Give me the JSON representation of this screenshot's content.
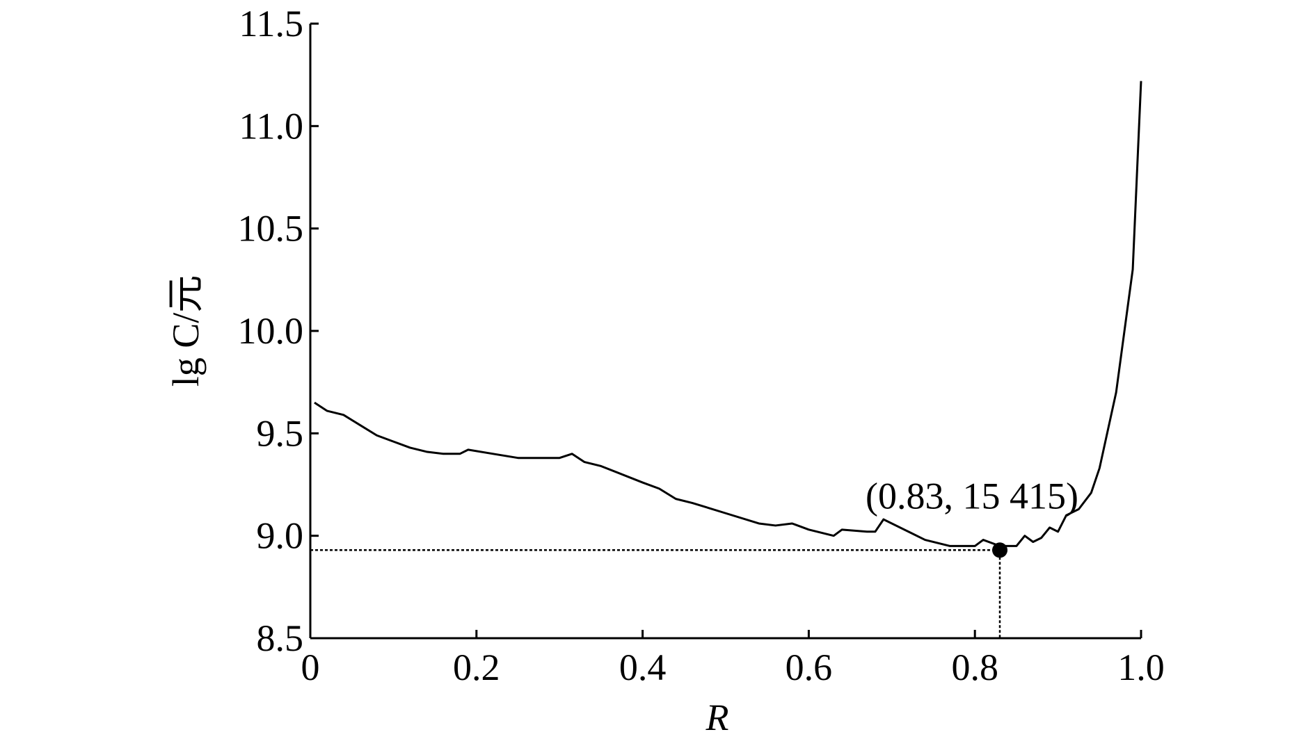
{
  "chart_data": {
    "type": "line",
    "xlabel": "R",
    "ylabel": "lg C/元",
    "x": [
      0.005,
      0.02,
      0.04,
      0.06,
      0.08,
      0.1,
      0.12,
      0.14,
      0.16,
      0.18,
      0.19,
      0.22,
      0.25,
      0.3,
      0.315,
      0.33,
      0.35,
      0.4,
      0.42,
      0.44,
      0.46,
      0.5,
      0.54,
      0.56,
      0.58,
      0.6,
      0.63,
      0.64,
      0.67,
      0.68,
      0.69,
      0.72,
      0.74,
      0.77,
      0.8,
      0.81,
      0.83,
      0.85,
      0.86,
      0.87,
      0.88,
      0.89,
      0.9,
      0.91,
      0.925,
      0.94,
      0.95,
      0.97,
      0.99,
      1.0
    ],
    "series": [
      {
        "color": "#000000",
        "values": [
          9.65,
          9.61,
          9.59,
          9.54,
          9.49,
          9.46,
          9.43,
          9.41,
          9.4,
          9.4,
          9.42,
          9.4,
          9.38,
          9.38,
          9.4,
          9.36,
          9.34,
          9.26,
          9.23,
          9.18,
          9.16,
          9.11,
          9.06,
          9.05,
          9.06,
          9.03,
          9.0,
          9.03,
          9.02,
          9.02,
          9.08,
          9.02,
          8.98,
          8.95,
          8.95,
          8.98,
          8.95,
          8.95,
          9.0,
          8.97,
          8.99,
          9.04,
          9.02,
          9.1,
          9.13,
          9.21,
          9.33,
          9.7,
          10.3,
          11.22
        ]
      }
    ],
    "highlight": {
      "x": 0.83,
      "y": 8.93,
      "label": "(0.83, 15 415)"
    },
    "xlim": [
      0,
      1
    ],
    "xticks": [
      0,
      0.2,
      0.4,
      0.6,
      0.8,
      {
        "value": 1,
        "label": "1.0"
      }
    ],
    "ylim": [
      8.5,
      11.5
    ],
    "yticks": [
      8.5,
      {
        "value": 9,
        "label": "9.0"
      },
      9.5,
      {
        "value": 10,
        "label": "10.0"
      },
      10.5,
      {
        "value": 11,
        "label": "11.0"
      },
      11.5
    ]
  }
}
